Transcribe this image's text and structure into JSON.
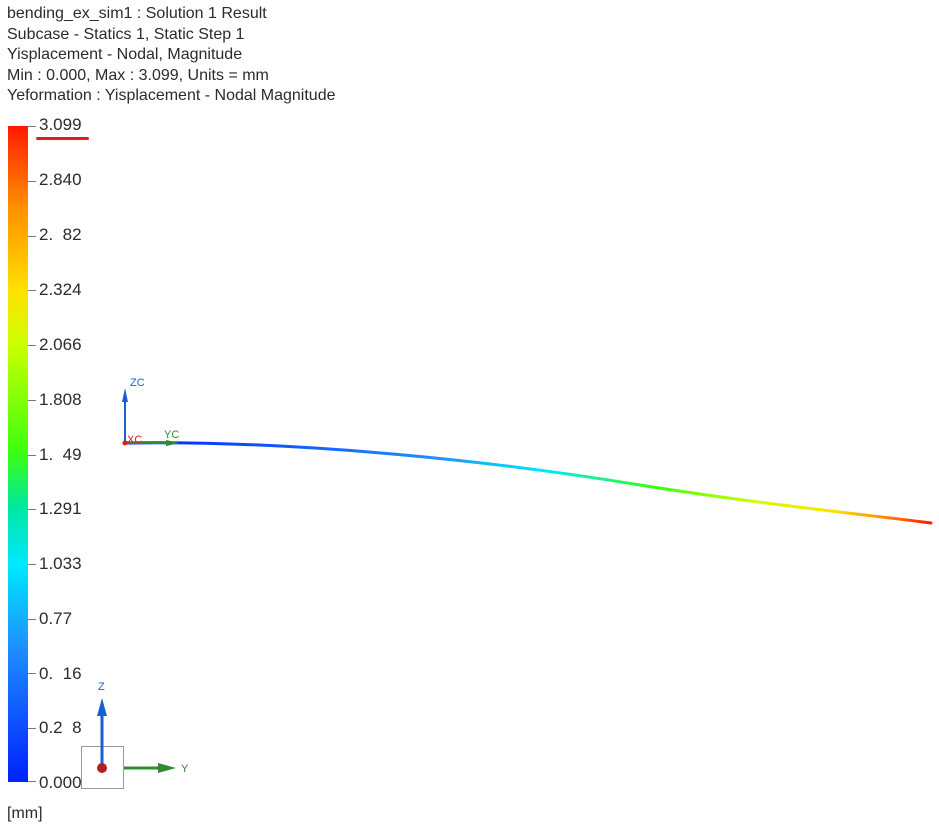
{
  "header": {
    "lines": [
      "bending_ex_sim1 : Solution 1 Result",
      "Subcase - Statics 1, Static Step 1",
      "Yisplacement - Nodal, Magnitude",
      "Min : 0.000, Max : 3.099, Units = mm",
      "Yeformation : Yisplacement - Nodal Magnitude"
    ]
  },
  "legend": {
    "labels": [
      "3.099",
      "2.840",
      "2.  82",
      "2.324",
      "2.066",
      "1.808",
      "1.  49",
      "1.291",
      "1.033",
      "0.77",
      "0.  16",
      "0.2  8",
      "0.000"
    ],
    "units": "[mm]",
    "colors": {
      "max": "#ff1a00",
      "high": "#ff8c00",
      "mid_high": "#ffe000",
      "mid": "#3aff10",
      "mid_low": "#00e8ff",
      "min": "#0020ff"
    }
  },
  "wcs_axes": {
    "z_label": "ZC",
    "y_label": "YC",
    "x_label": "XC",
    "z_color": "#1a5fd6",
    "y_color": "#2e8b2e",
    "x_color": "#d42020"
  },
  "view_triad": {
    "z_label": "Z",
    "y_label": "Y",
    "z_color": "#1a5fd6",
    "y_color": "#2e8b2e",
    "origin_color": "#b22020"
  },
  "deformed_beam": {
    "gradient_colors": [
      "#0020ff",
      "#1e8cff",
      "#00e8ff",
      "#3aff10",
      "#cfff00",
      "#ffe000",
      "#ff8c00",
      "#ff1a00"
    ]
  }
}
